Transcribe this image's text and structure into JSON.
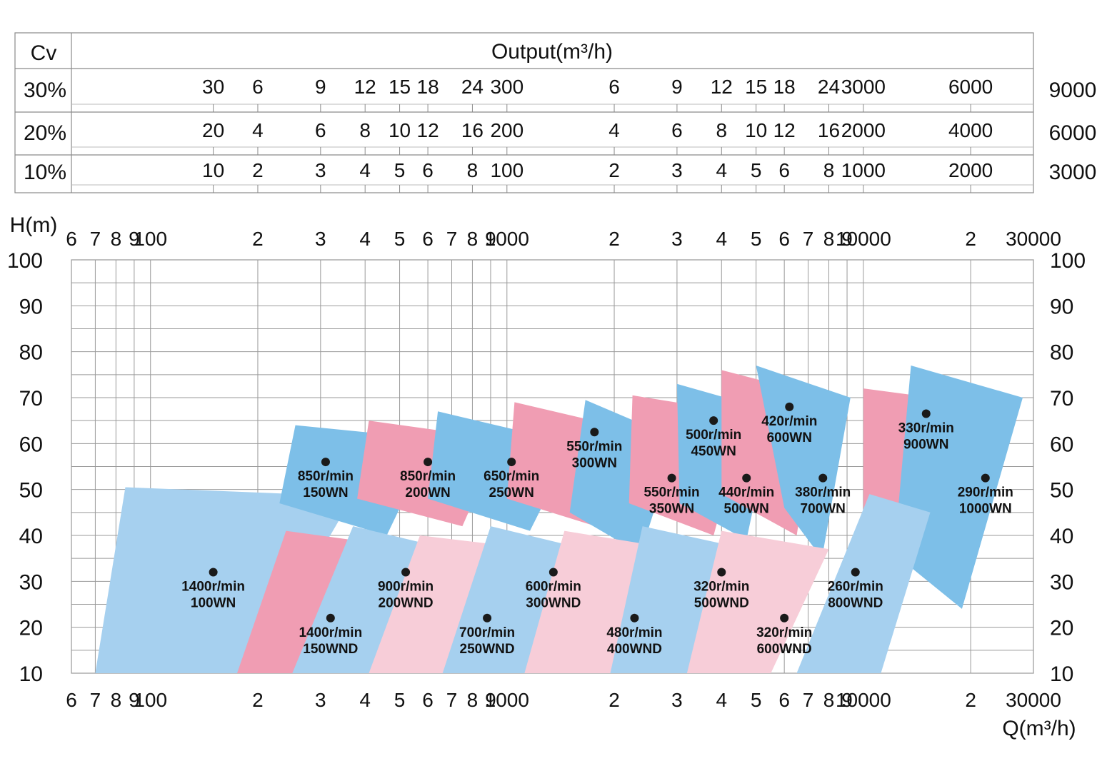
{
  "header_table": {
    "cv_label": "Cv",
    "output_label": "Output(m³/h)",
    "rows": [
      {
        "pct": "30%",
        "right": "9000",
        "values": [
          "30",
          "6",
          "9",
          "12",
          "15",
          "18",
          "24",
          "300",
          "6",
          "9",
          "12",
          "15",
          "18",
          "24",
          "3000",
          "6000"
        ]
      },
      {
        "pct": "20%",
        "right": "6000",
        "values": [
          "20",
          "4",
          "6",
          "8",
          "10",
          "12",
          "16",
          "200",
          "4",
          "6",
          "8",
          "10",
          "12",
          "16",
          "2000",
          "4000"
        ]
      },
      {
        "pct": "10%",
        "right": "3000",
        "values": [
          "10",
          "2",
          "3",
          "4",
          "5",
          "6",
          "8",
          "100",
          "2",
          "3",
          "4",
          "5",
          "6",
          "8",
          "1000",
          "2000"
        ]
      }
    ],
    "value_positions_q": [
      150,
      200,
      300,
      400,
      500,
      600,
      800,
      1000,
      2000,
      3000,
      4000,
      5000,
      6000,
      8000,
      10000,
      20000
    ]
  },
  "chart_data": {
    "type": "area",
    "title": "",
    "xlabel": "Q(m³/h)",
    "ylabel": "H(m)",
    "x_scale": "log",
    "xlim": [
      60,
      30000
    ],
    "ylim": [
      10,
      100
    ],
    "y_ticks": [
      10,
      20,
      30,
      40,
      50,
      60,
      70,
      80,
      90,
      100
    ],
    "x_ticks": [
      {
        "q": 60,
        "label": "6"
      },
      {
        "q": 70,
        "label": "7"
      },
      {
        "q": 80,
        "label": "8"
      },
      {
        "q": 90,
        "label": "9"
      },
      {
        "q": 100,
        "label": "100"
      },
      {
        "q": 200,
        "label": "2"
      },
      {
        "q": 300,
        "label": "3"
      },
      {
        "q": 400,
        "label": "4"
      },
      {
        "q": 500,
        "label": "5"
      },
      {
        "q": 600,
        "label": "6"
      },
      {
        "q": 700,
        "label": "7"
      },
      {
        "q": 800,
        "label": "8"
      },
      {
        "q": 900,
        "label": "9"
      },
      {
        "q": 1000,
        "label": "1000"
      },
      {
        "q": 2000,
        "label": "2"
      },
      {
        "q": 3000,
        "label": "3"
      },
      {
        "q": 4000,
        "label": "4"
      },
      {
        "q": 5000,
        "label": "5"
      },
      {
        "q": 6000,
        "label": "6"
      },
      {
        "q": 7000,
        "label": "7"
      },
      {
        "q": 8000,
        "label": "8"
      },
      {
        "q": 9000,
        "label": "9"
      },
      {
        "q": 10000,
        "label": "10000"
      },
      {
        "q": 20000,
        "label": "2"
      },
      {
        "q": 30000,
        "label": "30000"
      }
    ],
    "colors": {
      "dark_blue": "#7dbfe8",
      "light_blue": "#a6d0ef",
      "pink": "#f09db3",
      "light_pink": "#f7cdd8",
      "grid": "#9a9a9a",
      "dot": "#1a1a1a"
    },
    "regions": [
      {
        "id": "100WN",
        "speed": "1400r/min",
        "model": "100WN",
        "color": "light_blue",
        "q": 150,
        "h": 32,
        "poly": [
          [
            85,
            50.5
          ],
          [
            370,
            48.5
          ],
          [
            190,
            10
          ],
          [
            70,
            10
          ]
        ]
      },
      {
        "id": "150WN",
        "speed": "850r/min",
        "model": "150WN",
        "color": "dark_blue",
        "q": 310,
        "h": 56,
        "poly": [
          [
            255,
            64
          ],
          [
            620,
            61
          ],
          [
            460,
            40
          ],
          [
            230,
            47
          ]
        ]
      },
      {
        "id": "200WN",
        "speed": "850r/min",
        "model": "200WN",
        "color": "pink",
        "q": 600,
        "h": 56,
        "poly": [
          [
            410,
            65
          ],
          [
            960,
            61
          ],
          [
            750,
            42
          ],
          [
            380,
            48
          ]
        ]
      },
      {
        "id": "250WN",
        "speed": "650r/min",
        "model": "250WN",
        "color": "dark_blue",
        "q": 1030,
        "h": 56,
        "poly": [
          [
            640,
            67
          ],
          [
            1540,
            60
          ],
          [
            1160,
            41
          ],
          [
            600,
            48
          ]
        ]
      },
      {
        "id": "300WN",
        "speed": "550r/min",
        "model": "300WN",
        "color": "pink",
        "q": 1760,
        "h": 62.5,
        "poly": [
          [
            1050,
            69
          ],
          [
            2900,
            61
          ],
          [
            2150,
            40
          ],
          [
            1000,
            48
          ]
        ]
      },
      {
        "id": "350WN",
        "speed": "550r/min",
        "model": "350WN",
        "color": "dark_blue",
        "q": 2900,
        "h": 52.5,
        "poly": [
          [
            1660,
            69.5
          ],
          [
            3000,
            61
          ],
          [
            2370,
            36
          ],
          [
            1500,
            45
          ]
        ]
      },
      {
        "id": "450WN",
        "speed": "500r/min",
        "model": "450WN",
        "color": "pink",
        "q": 3800,
        "h": 65,
        "poly": [
          [
            2250,
            70.5
          ],
          [
            4700,
            66.5
          ],
          [
            3800,
            40
          ],
          [
            2200,
            47
          ]
        ]
      },
      {
        "id": "500WN",
        "speed": "440r/min",
        "model": "500WN",
        "color": "dark_blue",
        "q": 4700,
        "h": 52.5,
        "poly": [
          [
            3000,
            73
          ],
          [
            5600,
            67
          ],
          [
            4700,
            39
          ],
          [
            3050,
            47
          ]
        ]
      },
      {
        "id": "600WN",
        "speed": "420r/min",
        "model": "600WN",
        "color": "pink",
        "q": 6200,
        "h": 68,
        "poly": [
          [
            4000,
            76
          ],
          [
            7500,
            70.5
          ],
          [
            6500,
            40
          ],
          [
            4000,
            49
          ]
        ]
      },
      {
        "id": "700WN",
        "speed": "380r/min",
        "model": "700WN",
        "color": "dark_blue",
        "q": 7700,
        "h": 52.5,
        "poly": [
          [
            5000,
            77
          ],
          [
            9200,
            70
          ],
          [
            7650,
            35
          ],
          [
            6000,
            46
          ]
        ]
      },
      {
        "id": "900WN",
        "speed": "330r/min",
        "model": "900WN",
        "color": "pink",
        "q": 15000,
        "h": 66.5,
        "poly": [
          [
            10000,
            72
          ],
          [
            19500,
            69
          ],
          [
            15900,
            38
          ],
          [
            10000,
            44
          ]
        ]
      },
      {
        "id": "1000WN",
        "speed": "290r/min",
        "model": "1000WN",
        "color": "dark_blue",
        "q": 22000,
        "h": 52.5,
        "poly": [
          [
            13600,
            77
          ],
          [
            28000,
            70
          ],
          [
            18900,
            24
          ],
          [
            12200,
            36
          ]
        ]
      },
      {
        "id": "150WND",
        "speed": "1400r/min",
        "model": "150WND",
        "color": "pink",
        "q": 320,
        "h": 22,
        "poly": [
          [
            240,
            41
          ],
          [
            460,
            38
          ],
          [
            290,
            10
          ],
          [
            175,
            10
          ]
        ]
      },
      {
        "id": "200WND",
        "speed": "900r/min",
        "model": "200WND",
        "color": "light_blue",
        "q": 520,
        "h": 32,
        "poly": [
          [
            370,
            42
          ],
          [
            780,
            36
          ],
          [
            520,
            10
          ],
          [
            250,
            10
          ]
        ]
      },
      {
        "id": "250WND",
        "speed": "700r/min",
        "model": "250WND",
        "color": "light_pink",
        "q": 880,
        "h": 22,
        "poly": [
          [
            570,
            40
          ],
          [
            1200,
            37
          ],
          [
            740,
            10
          ],
          [
            410,
            10
          ]
        ]
      },
      {
        "id": "300WND",
        "speed": "600r/min",
        "model": "300WND",
        "color": "light_blue",
        "q": 1350,
        "h": 32,
        "poly": [
          [
            900,
            42
          ],
          [
            1880,
            36
          ],
          [
            1200,
            10
          ],
          [
            660,
            10
          ]
        ]
      },
      {
        "id": "400WND",
        "speed": "480r/min",
        "model": "400WND",
        "color": "light_pink",
        "q": 2280,
        "h": 22,
        "poly": [
          [
            1450,
            41
          ],
          [
            3000,
            37
          ],
          [
            2000,
            10
          ],
          [
            1120,
            10
          ]
        ]
      },
      {
        "id": "500WND",
        "speed": "320r/min",
        "model": "500WND",
        "color": "light_blue",
        "q": 4000,
        "h": 32,
        "poly": [
          [
            2400,
            42
          ],
          [
            5400,
            36
          ],
          [
            3500,
            10
          ],
          [
            1950,
            10
          ]
        ]
      },
      {
        "id": "600WND",
        "speed": "320r/min",
        "model": "600WND",
        "color": "light_pink",
        "q": 6000,
        "h": 22,
        "poly": [
          [
            4000,
            41
          ],
          [
            8000,
            37
          ],
          [
            5500,
            10
          ],
          [
            3200,
            10
          ]
        ]
      },
      {
        "id": "800WND",
        "speed": "260r/min",
        "model": "800WND",
        "color": "light_blue",
        "q": 9500,
        "h": 32,
        "poly": [
          [
            10400,
            49
          ],
          [
            15400,
            45
          ],
          [
            11200,
            10
          ],
          [
            6500,
            10
          ]
        ]
      }
    ]
  }
}
